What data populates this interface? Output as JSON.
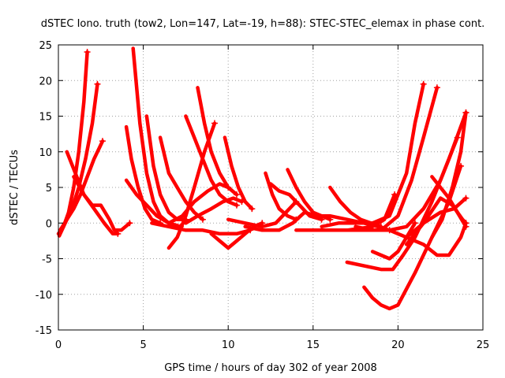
{
  "chart_data": {
    "type": "line",
    "title": "dSTEC Iono. truth (tow2, Lon=147, Lat=-19, h=88): STEC-STEC_elemax in phase cont.",
    "xlabel": "GPS time / hours of day 302 of year 2008",
    "ylabel": "dSTEC  / TECUs",
    "xlim": [
      0,
      25
    ],
    "ylim": [
      -15,
      25
    ],
    "xticks": [
      0,
      5,
      10,
      15,
      20,
      25
    ],
    "yticks": [
      -15,
      -10,
      -5,
      0,
      5,
      10,
      15,
      20,
      25
    ],
    "grid": true,
    "legend": "none",
    "color": "#ff0000",
    "marker": "+",
    "series": [
      {
        "x": [
          0.0,
          0.3,
          0.6,
          0.9,
          1.2,
          1.5,
          1.7
        ],
        "y": [
          -1.5,
          -0.5,
          1.5,
          5.0,
          10.0,
          17.0,
          24.0
        ]
      },
      {
        "x": [
          0.05,
          0.4,
          0.8,
          1.2,
          1.6,
          2.0,
          2.3
        ],
        "y": [
          -1.8,
          0.0,
          2.0,
          5.0,
          9.0,
          14.0,
          19.5
        ]
      },
      {
        "x": [
          0.1,
          0.5,
          0.9,
          1.3,
          1.7,
          2.1,
          2.6
        ],
        "y": [
          -1.0,
          0.5,
          2.0,
          4.0,
          6.5,
          9.0,
          11.5
        ]
      },
      {
        "x": [
          0.5,
          1.0,
          1.5,
          2.0,
          2.5,
          3.0,
          3.3,
          3.7,
          4.2
        ],
        "y": [
          10.0,
          7.0,
          4.0,
          2.5,
          2.5,
          0.5,
          -1.0,
          -1.0,
          0.0
        ]
      },
      {
        "x": [
          0.9,
          1.5,
          2.1,
          2.7,
          3.2,
          3.5
        ],
        "y": [
          6.5,
          4.0,
          2.0,
          0.0,
          -1.5,
          -1.5
        ]
      },
      {
        "x": [
          4.4,
          4.8,
          5.2,
          5.6,
          6.0,
          6.5,
          7.0
        ],
        "y": [
          24.5,
          14.0,
          7.0,
          3.0,
          1.0,
          0.0,
          -0.5
        ]
      },
      {
        "x": [
          4.0,
          4.3,
          4.7,
          5.1,
          5.5,
          6.0
        ],
        "y": [
          13.5,
          9.0,
          5.0,
          2.0,
          0.5,
          0.0
        ]
      },
      {
        "x": [
          4.0,
          4.6,
          5.2,
          5.8,
          6.5,
          7.2
        ],
        "y": [
          6.0,
          4.0,
          2.5,
          1.0,
          0.0,
          -0.5
        ]
      },
      {
        "x": [
          5.2,
          5.6,
          6.0,
          6.5,
          7.0,
          7.5
        ],
        "y": [
          15.0,
          8.0,
          4.0,
          1.5,
          0.5,
          0.5
        ]
      },
      {
        "x": [
          6.0,
          6.5,
          7.0,
          7.5,
          8.0,
          8.5
        ],
        "y": [
          12.0,
          7.0,
          5.0,
          3.0,
          1.5,
          0.5
        ]
      },
      {
        "x": [
          7.5,
          8.0,
          8.5,
          9.0,
          9.5,
          10.0,
          10.5
        ],
        "y": [
          15.0,
          12.0,
          9.0,
          6.0,
          4.0,
          3.0,
          2.5
        ]
      },
      {
        "x": [
          8.2,
          8.6,
          9.0,
          9.5,
          10.0,
          10.5
        ],
        "y": [
          19.0,
          14.0,
          10.0,
          7.0,
          5.0,
          4.0
        ]
      },
      {
        "x": [
          9.8,
          10.2,
          10.6,
          11.0,
          11.4
        ],
        "y": [
          12.0,
          8.0,
          5.0,
          3.0,
          2.0
        ]
      },
      {
        "x": [
          6.5,
          7.0,
          7.5,
          8.0,
          8.6,
          9.2
        ],
        "y": [
          -3.5,
          -2.0,
          1.0,
          5.0,
          10.0,
          14.0
        ]
      },
      {
        "x": [
          6.5,
          7.3,
          8.0,
          8.8,
          9.5,
          10.0
        ],
        "y": [
          0.0,
          1.0,
          3.0,
          4.5,
          5.5,
          5.0
        ]
      },
      {
        "x": [
          5.5,
          6.5,
          7.5,
          8.5,
          9.5,
          10.5,
          11.3
        ],
        "y": [
          0.0,
          -0.5,
          -1.0,
          -1.0,
          -1.5,
          -1.5,
          -1.0
        ]
      },
      {
        "x": [
          7.5,
          8.2,
          9.0,
          9.7,
          10.3,
          10.8
        ],
        "y": [
          0.0,
          1.0,
          2.0,
          3.0,
          3.5,
          3.0
        ]
      },
      {
        "x": [
          9.0,
          9.5,
          10.0,
          10.5,
          11.0,
          11.5,
          12.0
        ],
        "y": [
          -1.5,
          -2.5,
          -3.5,
          -2.5,
          -1.5,
          -0.5,
          0.0
        ]
      },
      {
        "x": [
          10.0,
          11.0,
          12.0,
          12.8,
          13.4,
          14.0
        ],
        "y": [
          0.5,
          0.0,
          -0.5,
          0.0,
          1.5,
          3.0
        ]
      },
      {
        "x": [
          12.2,
          12.6,
          13.0,
          13.5,
          14.0
        ],
        "y": [
          7.0,
          4.0,
          2.0,
          1.0,
          0.5
        ]
      },
      {
        "x": [
          12.5,
          13.0,
          13.6,
          14.2,
          14.8,
          15.5
        ],
        "y": [
          5.5,
          4.5,
          4.0,
          2.5,
          1.0,
          0.5
        ]
      },
      {
        "x": [
          13.5,
          14.0,
          14.5,
          15.0,
          15.5,
          16.0
        ],
        "y": [
          7.5,
          5.0,
          3.0,
          1.5,
          1.0,
          0.5
        ]
      },
      {
        "x": [
          11.0,
          12.0,
          13.0,
          13.8,
          14.5,
          15.2
        ],
        "y": [
          -0.5,
          -1.0,
          -1.0,
          0.0,
          1.5,
          1.0
        ]
      },
      {
        "x": [
          16.0,
          16.6,
          17.2,
          17.8,
          18.4,
          19.0
        ],
        "y": [
          5.0,
          3.0,
          1.5,
          0.5,
          0.0,
          -0.5
        ]
      },
      {
        "x": [
          15.0,
          16.0,
          17.0,
          18.0,
          18.8,
          19.5
        ],
        "y": [
          1.0,
          1.0,
          0.5,
          0.0,
          -0.5,
          -1.0
        ]
      },
      {
        "x": [
          14.0,
          15.5,
          17.0,
          18.5,
          19.2,
          19.8
        ],
        "y": [
          -1.0,
          -1.0,
          -1.0,
          -0.5,
          0.5,
          4.0
        ]
      },
      {
        "x": [
          15.5,
          16.5,
          17.5,
          18.5,
          19.5,
          20.5,
          21.0,
          21.5
        ],
        "y": [
          -0.5,
          0.0,
          0.0,
          0.0,
          1.0,
          7.0,
          14.0,
          19.5
        ]
      },
      {
        "x": [
          17.0,
          18.0,
          19.0,
          20.0,
          20.8,
          21.5,
          22.3
        ],
        "y": [
          -1.0,
          -1.0,
          -1.0,
          1.0,
          6.0,
          12.0,
          19.0
        ]
      },
      {
        "x": [
          17.5,
          18.5,
          19.5,
          20.5,
          21.5,
          22.5,
          23.5
        ],
        "y": [
          -0.5,
          -1.0,
          -1.0,
          -0.5,
          2.0,
          6.0,
          12.0
        ]
      },
      {
        "x": [
          18.0,
          18.5,
          19.0,
          19.5,
          20.0,
          21.0,
          22.0,
          23.0,
          23.7
        ],
        "y": [
          -9.0,
          -10.5,
          -11.5,
          -12.0,
          -11.5,
          -7.0,
          -2.0,
          3.0,
          8.0
        ]
      },
      {
        "x": [
          17.0,
          18.0,
          19.0,
          19.7,
          20.3,
          21.0,
          22.0,
          23.0,
          24.0
        ],
        "y": [
          -5.5,
          -6.0,
          -6.5,
          -6.5,
          -4.5,
          -2.0,
          3.0,
          9.0,
          15.5
        ]
      },
      {
        "x": [
          18.5,
          19.0,
          19.5,
          20.0,
          20.5,
          21.0
        ],
        "y": [
          -4.0,
          -4.5,
          -5.0,
          -4.0,
          -2.0,
          0.0
        ]
      },
      {
        "x": [
          19.5,
          20.5,
          21.5,
          22.3,
          23.0,
          23.7,
          24.0
        ],
        "y": [
          -1.0,
          -2.0,
          -3.0,
          -4.5,
          -4.5,
          -2.0,
          0.0
        ]
      },
      {
        "x": [
          20.5,
          21.5,
          22.5,
          23.2,
          23.8,
          24.0
        ],
        "y": [
          -3.0,
          0.0,
          3.5,
          2.5,
          0.5,
          0.0
        ]
      },
      {
        "x": [
          22.0,
          22.5,
          23.0,
          23.5,
          24.0
        ],
        "y": [
          6.5,
          5.0,
          3.5,
          1.5,
          -0.5
        ]
      },
      {
        "x": [
          20.5,
          21.5,
          22.5,
          23.3,
          24.0
        ],
        "y": [
          -2.0,
          0.0,
          1.5,
          2.0,
          3.5
        ]
      },
      {
        "x": [
          22.0,
          22.6,
          23.2,
          23.7,
          24.0
        ],
        "y": [
          -2.0,
          0.5,
          5.0,
          10.0,
          15.5
        ]
      }
    ]
  }
}
